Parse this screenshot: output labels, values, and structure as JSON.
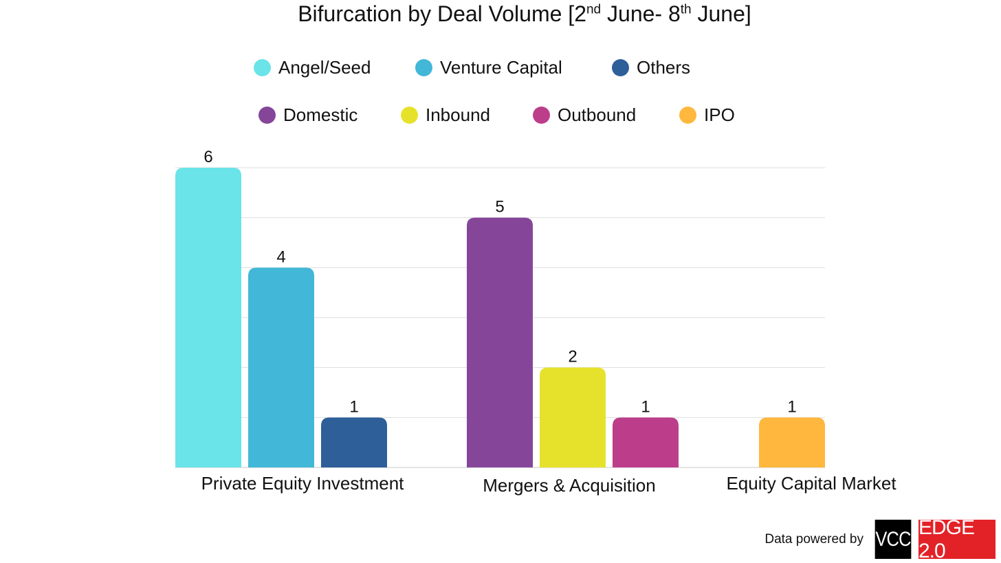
{
  "title": {
    "prefix": "Bifurcation by Deal Volume [2",
    "sup1": "nd",
    "middle": " June- 8",
    "sup2": "th",
    "suffix": " June]"
  },
  "legend": {
    "row1": [
      {
        "label": "Angel/Seed",
        "color": "#6ae4e8"
      },
      {
        "label": "Venture Capital",
        "color": "#42b7d7"
      },
      {
        "label": "Others",
        "color": "#2e5f99"
      }
    ],
    "row2": [
      {
        "label": "Domestic",
        "color": "#854699"
      },
      {
        "label": "Inbound",
        "color": "#e6e22c"
      },
      {
        "label": "Outbound",
        "color": "#bc3e8b"
      },
      {
        "label": "IPO",
        "color": "#ffb83d"
      }
    ]
  },
  "chart_data": {
    "type": "bar",
    "categories": [
      "Private Equity Investment",
      "Mergers & Acquisition",
      "Equity Capital Market"
    ],
    "bars": [
      {
        "category": "Private Equity Investment",
        "series": "Angel/Seed",
        "value": 6,
        "color": "#6ae4e8"
      },
      {
        "category": "Private Equity Investment",
        "series": "Venture Capital",
        "value": 4,
        "color": "#42b7d7"
      },
      {
        "category": "Private Equity Investment",
        "series": "Others",
        "value": 1,
        "color": "#2e5f99"
      },
      {
        "category": "Mergers & Acquisition",
        "series": "Domestic",
        "value": 5,
        "color": "#854699"
      },
      {
        "category": "Mergers & Acquisition",
        "series": "Inbound",
        "value": 2,
        "color": "#e6e22c"
      },
      {
        "category": "Mergers & Acquisition",
        "series": "Outbound",
        "value": 1,
        "color": "#bc3e8b"
      },
      {
        "category": "Equity Capital Market",
        "series": "IPO",
        "value": 1,
        "color": "#ffb83d"
      }
    ],
    "ylim": [
      0,
      6
    ],
    "grid": true,
    "legend_position": "top",
    "data_labels": true
  },
  "footer": {
    "text": "Data powered by",
    "logo_left": "VCC",
    "logo_right": "EDGE 2.0"
  }
}
